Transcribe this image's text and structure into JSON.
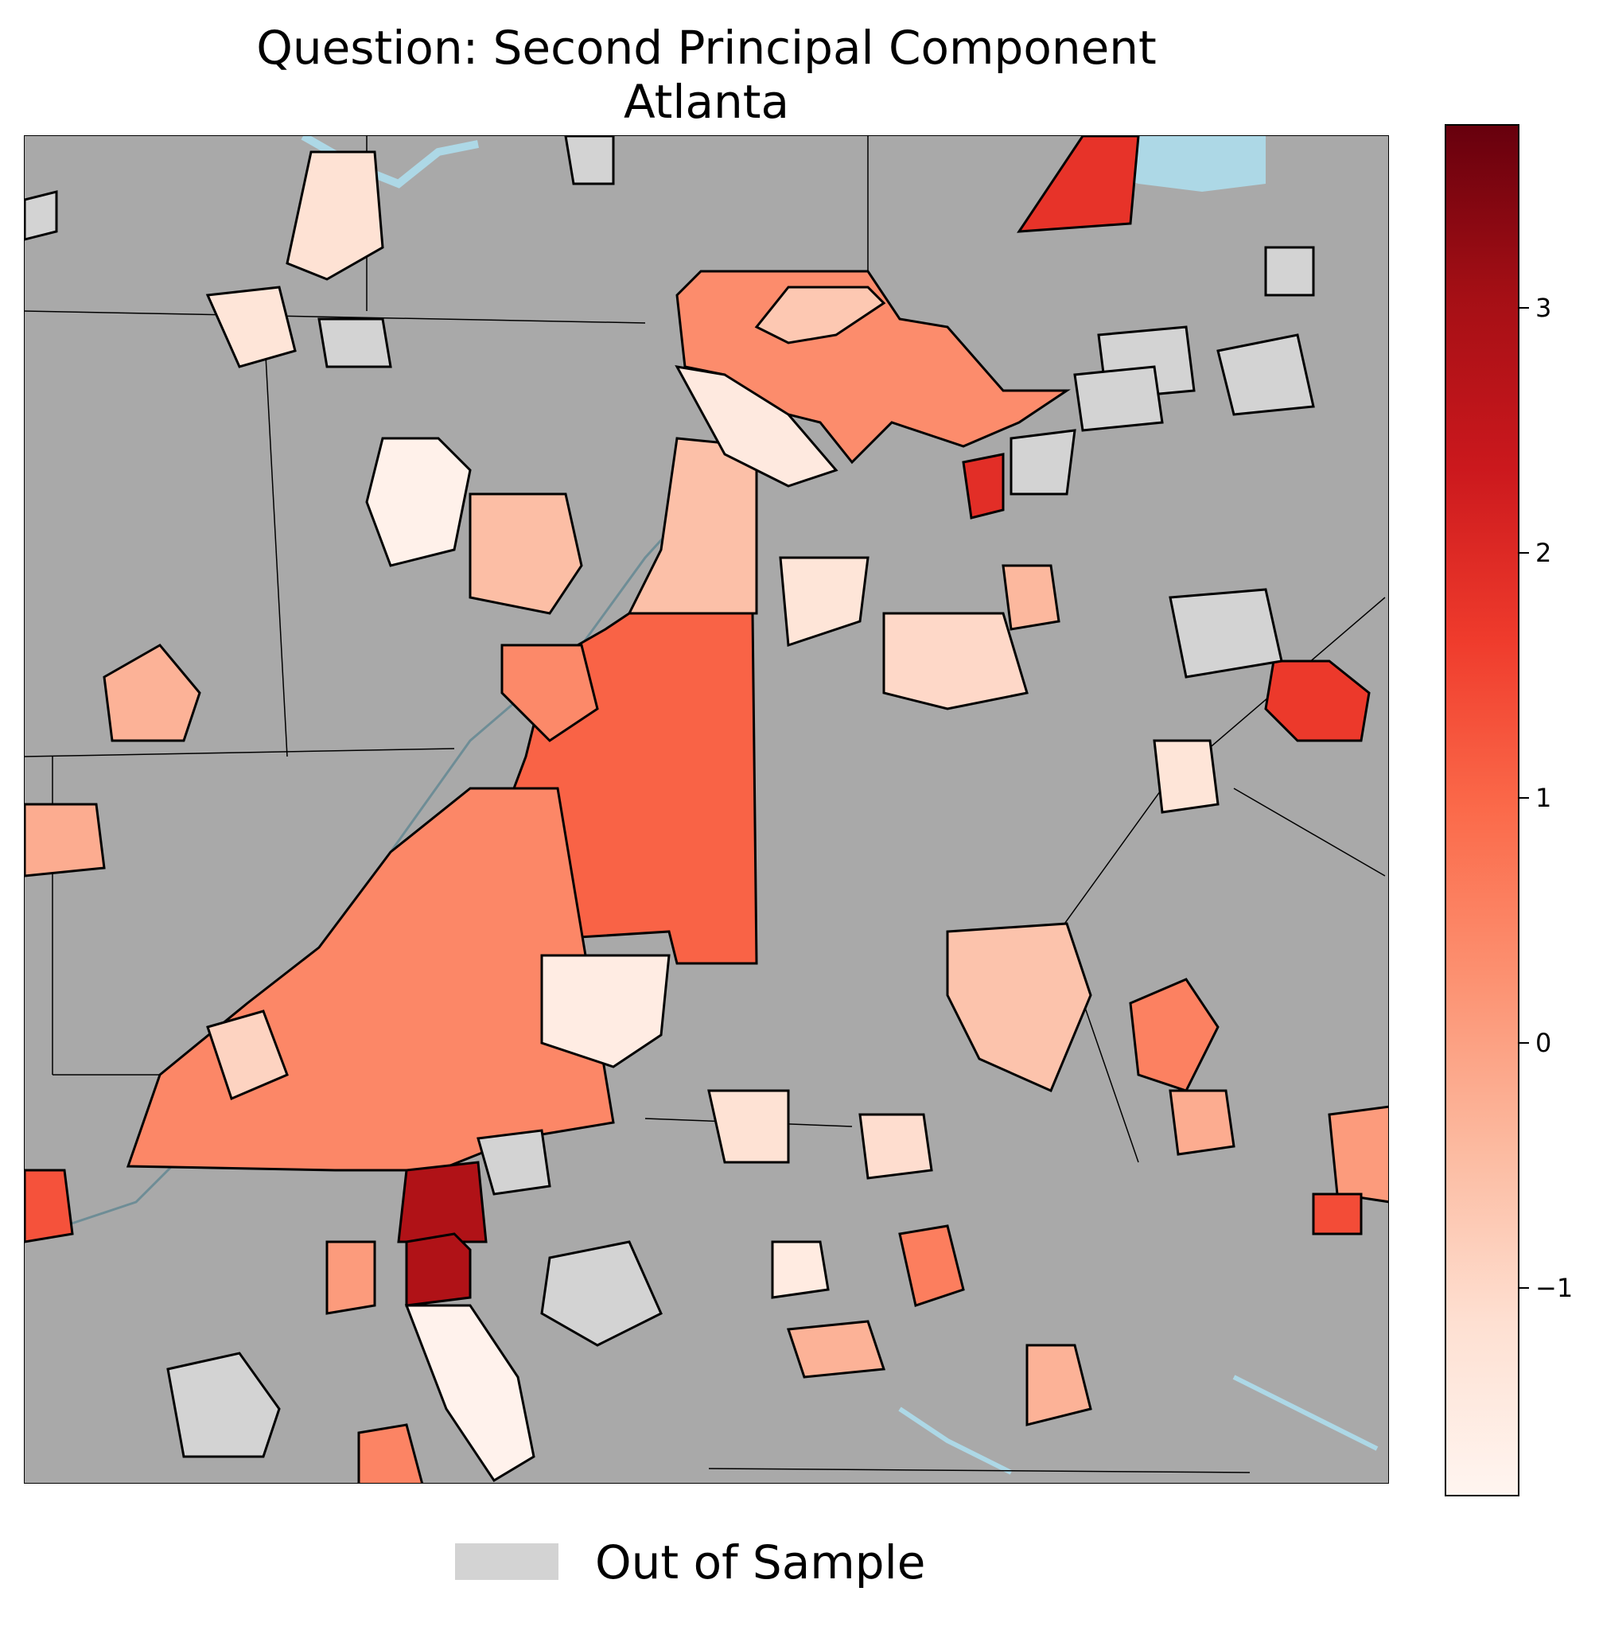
{
  "title": {
    "line1": "Question: Second Principal Component",
    "line2": "Atlanta"
  },
  "map": {
    "basemap_color": "#a9a9a9",
    "water_color": "#add8e6",
    "out_of_sample_color": "#d3d3d3",
    "boundary_color": "#000000",
    "colormap": "Reds",
    "regions_description_values": [
      0.3,
      0.6,
      -0.5,
      -1.2,
      0.9,
      3.0,
      -1.6,
      -1.8,
      1.2,
      0.5,
      -1.0,
      2.8,
      1.6,
      -0.4,
      0.7,
      -1.4
    ]
  },
  "colorbar": {
    "min": -1.85,
    "max": 3.75,
    "ticks": [
      {
        "value": 3,
        "label": "3"
      },
      {
        "value": 2,
        "label": "2"
      },
      {
        "value": 1,
        "label": "1"
      },
      {
        "value": 0,
        "label": "0"
      },
      {
        "value": -1,
        "label": "−1"
      }
    ],
    "gradient_colors": [
      "#fff5f0",
      "#fee0d2",
      "#fcbba1",
      "#fc9272",
      "#fb6a4a",
      "#ef3b2c",
      "#cb181d",
      "#a50f15",
      "#67000d"
    ]
  },
  "legend": {
    "label": "Out of Sample",
    "swatch_color": "#d3d3d3"
  }
}
